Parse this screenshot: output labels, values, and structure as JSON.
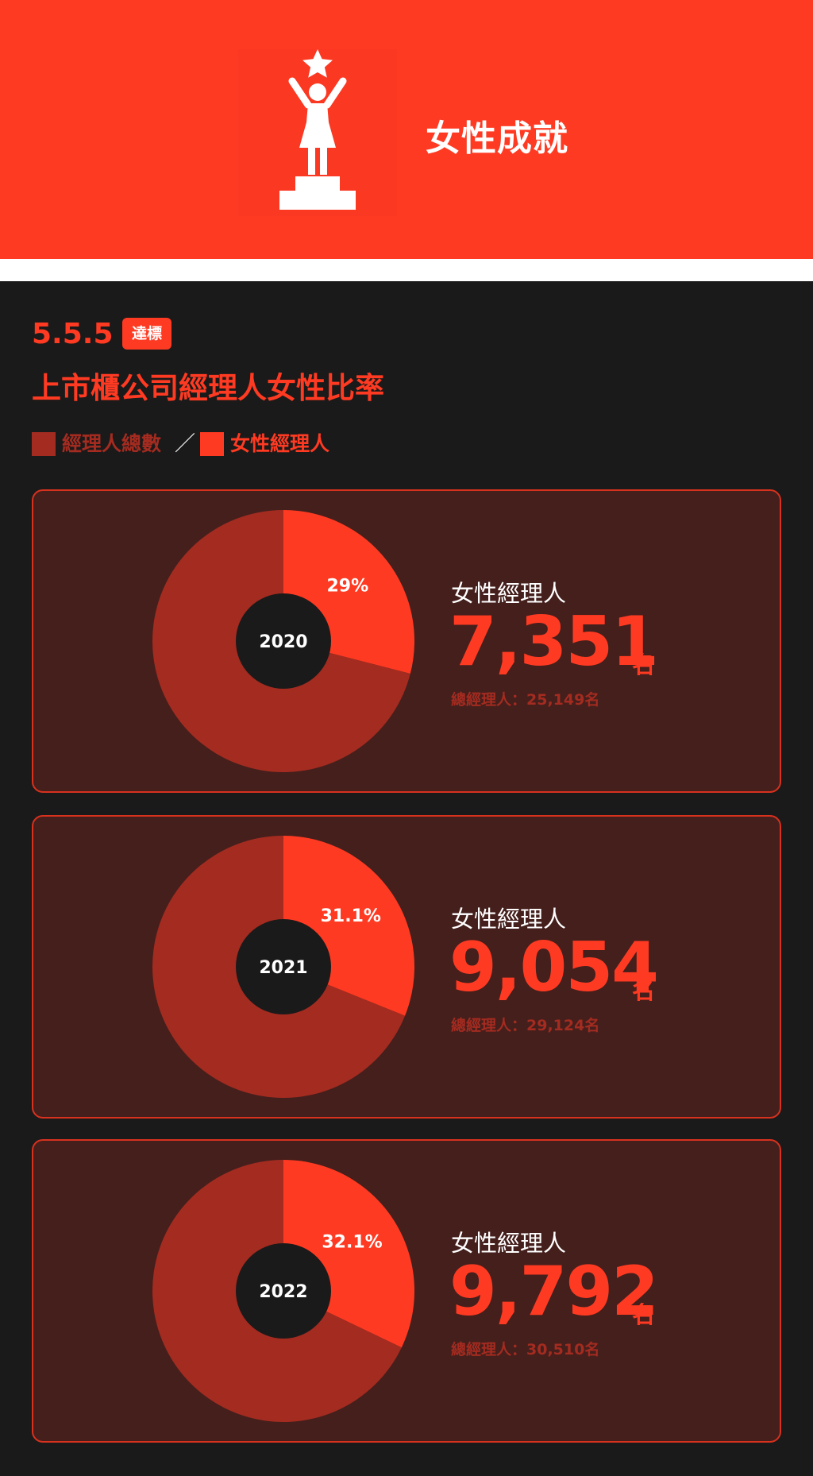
{
  "header": {
    "title": "女性成就",
    "icon": "trophy-woman-icon"
  },
  "goal": {
    "code": "5.5.5",
    "badge": "達標",
    "heading": "上市櫃公司經理人女性比率"
  },
  "legend": {
    "total_label": "經理人總數",
    "separator": "／",
    "female_label": "女性經理人"
  },
  "colors": {
    "accent": "#ff3a22",
    "total": "#a42b20",
    "card_bg": "#441f1c",
    "page_bg": "#1a1a1a"
  },
  "cards": [
    {
      "year": "2020",
      "pct_label": "29%",
      "caption": "女性經理人",
      "value": "7,351",
      "unit": "名",
      "total": "總經理人：25,149名"
    },
    {
      "year": "2021",
      "pct_label": "31.1%",
      "caption": "女性經理人",
      "value": "9,054",
      "unit": "名",
      "total": "總經理人：29,124名"
    },
    {
      "year": "2022",
      "pct_label": "32.1%",
      "caption": "女性經理人",
      "value": "9,792",
      "unit": "名",
      "total": "總經理人：30,510名"
    }
  ],
  "chart_data": [
    {
      "type": "pie",
      "center_label": "2020",
      "categories": [
        "女性經理人",
        "經理人總數"
      ],
      "values": [
        29,
        71
      ]
    },
    {
      "type": "pie",
      "center_label": "2021",
      "categories": [
        "女性經理人",
        "經理人總數"
      ],
      "values": [
        31.1,
        68.9
      ]
    },
    {
      "type": "pie",
      "center_label": "2022",
      "categories": [
        "女性經理人",
        "經理人總數"
      ],
      "values": [
        32.1,
        67.9
      ]
    }
  ]
}
